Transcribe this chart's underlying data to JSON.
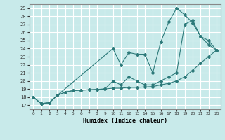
{
  "bg_color": "#c8eaea",
  "grid_color": "#ffffff",
  "line_color": "#2d7a7a",
  "marker_color": "#2d7a7a",
  "xlabel": "Humidex (Indice chaleur)",
  "ylabel_ticks": [
    17,
    18,
    19,
    20,
    21,
    22,
    23,
    24,
    25,
    26,
    27,
    28,
    29
  ],
  "xlim": [
    -0.5,
    23.5
  ],
  "ylim": [
    16.5,
    29.5
  ],
  "line1_x": [
    0,
    1,
    2,
    3,
    4,
    5,
    6,
    7,
    8,
    9,
    10,
    11,
    12,
    13,
    14,
    15,
    16,
    17,
    18,
    19,
    20,
    21,
    22,
    23
  ],
  "line1_y": [
    18.0,
    17.2,
    17.3,
    18.2,
    18.6,
    18.8,
    18.85,
    18.9,
    18.95,
    19.0,
    19.1,
    19.1,
    19.2,
    19.2,
    19.25,
    19.3,
    19.5,
    19.7,
    20.0,
    20.5,
    21.3,
    22.2,
    23.0,
    23.8
  ],
  "line2_x": [
    0,
    1,
    2,
    3,
    10,
    11,
    12,
    13,
    14,
    15,
    16,
    17,
    18,
    19,
    20,
    21,
    22,
    23
  ],
  "line2_y": [
    18.0,
    17.2,
    17.3,
    18.2,
    24.0,
    22.0,
    23.5,
    23.3,
    23.3,
    21.0,
    24.8,
    27.3,
    29.0,
    28.2,
    27.2,
    25.5,
    25.0,
    23.8
  ],
  "line3_x": [
    0,
    1,
    2,
    3,
    4,
    5,
    6,
    7,
    8,
    9,
    10,
    11,
    12,
    13,
    14,
    15,
    16,
    17,
    18,
    19,
    20,
    21,
    22,
    23
  ],
  "line3_y": [
    18.0,
    17.2,
    17.3,
    18.2,
    18.6,
    18.8,
    18.85,
    18.9,
    18.95,
    19.0,
    20.0,
    19.5,
    20.5,
    20.0,
    19.5,
    19.5,
    20.0,
    20.5,
    21.0,
    27.0,
    27.5,
    25.5,
    24.5,
    23.8
  ]
}
